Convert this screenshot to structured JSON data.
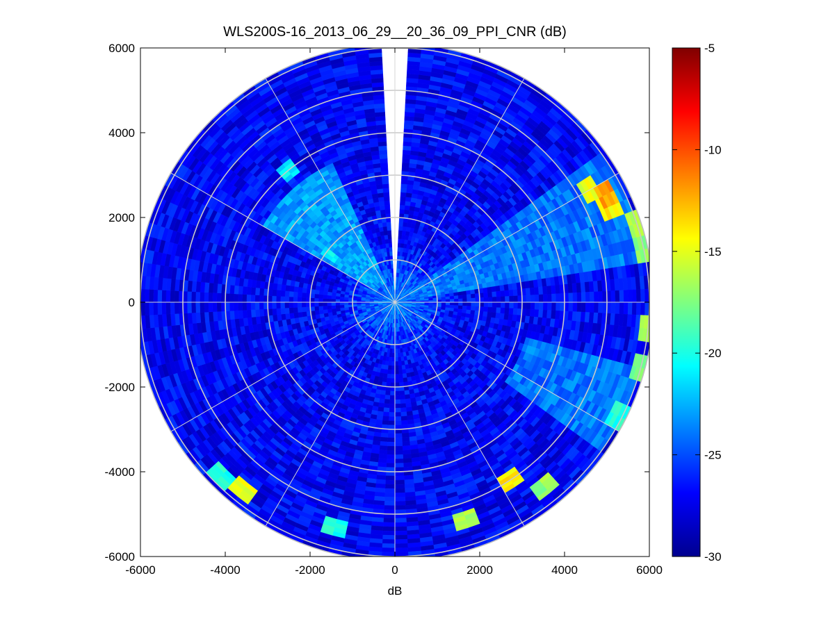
{
  "chart_data": {
    "type": "heatmap",
    "projection": "polar-ppi",
    "title": "WLS200S-16_2013_06_29__20_36_09_PPI_CNR (dB)",
    "xlabel": "dB",
    "ylabel": "",
    "xlim": [
      -6000,
      6000
    ],
    "ylim": [
      -6000,
      6000
    ],
    "x_ticks": [
      -6000,
      -4000,
      -2000,
      0,
      2000,
      4000,
      6000
    ],
    "y_ticks": [
      6000,
      4000,
      2000,
      0,
      -2000,
      -4000,
      -6000
    ],
    "x_tick_labels": [
      "-6000",
      "-4000",
      "-2000",
      "0",
      "2000",
      "4000",
      "6000"
    ],
    "y_tick_labels": [
      "6000",
      "4000",
      "2000",
      "0",
      "-2000",
      "-4000",
      "-6000"
    ],
    "max_range": 6100,
    "range_rings": [
      1000,
      2000,
      3000,
      4000,
      5000,
      6000
    ],
    "radial_lines_deg": [
      0,
      30,
      60,
      90,
      120,
      150,
      180,
      210,
      240,
      270,
      300,
      330
    ],
    "gap_azimuth_deg": [
      -4,
      4
    ],
    "background_cnr_db": -27,
    "colorbar": {
      "min": -30,
      "max": -5,
      "ticks": [
        -5,
        -10,
        -15,
        -20,
        -25,
        -30
      ],
      "tick_labels": [
        "-5",
        "-10",
        "-15",
        "-20",
        "-25",
        "-30"
      ],
      "colormap": "jet"
    },
    "enhanced_sectors": [
      {
        "az_from": 55,
        "az_to": 80,
        "r_from": 300,
        "r_to": 6000,
        "cnr_db": -24
      },
      {
        "az_from": 300,
        "az_to": 335,
        "r_from": 500,
        "r_to": 3600,
        "cnr_db": -23
      },
      {
        "az_from": 105,
        "az_to": 125,
        "r_from": 3200,
        "r_to": 6000,
        "cnr_db": -24
      }
    ],
    "strong_echoes": [
      {
        "azimuth_deg": 60,
        "range_m": 5300,
        "cnr_db": -15
      },
      {
        "azimuth_deg": 62,
        "range_m": 5600,
        "cnr_db": -12
      },
      {
        "azimuth_deg": 67,
        "range_m": 5550,
        "cnr_db": -14
      },
      {
        "azimuth_deg": 72,
        "range_m": 6000,
        "cnr_db": -16
      },
      {
        "azimuth_deg": 78,
        "range_m": 6000,
        "cnr_db": -17
      },
      {
        "azimuth_deg": 95,
        "range_m": 6000,
        "cnr_db": -17
      },
      {
        "azimuth_deg": 106,
        "range_m": 6000,
        "cnr_db": -18
      },
      {
        "azimuth_deg": 118,
        "range_m": 5900,
        "cnr_db": -20
      },
      {
        "azimuth_deg": 140,
        "range_m": 5600,
        "cnr_db": -17
      },
      {
        "azimuth_deg": 148,
        "range_m": 5000,
        "cnr_db": -14
      },
      {
        "azimuth_deg": 162,
        "range_m": 5400,
        "cnr_db": -16
      },
      {
        "azimuth_deg": 195,
        "range_m": 5500,
        "cnr_db": -20
      },
      {
        "azimuth_deg": 218,
        "range_m": 5700,
        "cnr_db": -15
      },
      {
        "azimuth_deg": 224,
        "range_m": 5800,
        "cnr_db": -20
      },
      {
        "azimuth_deg": 320,
        "range_m": 4000,
        "cnr_db": -21
      },
      {
        "azimuth_deg": 305,
        "range_m": 1900,
        "cnr_db": -21
      }
    ]
  }
}
